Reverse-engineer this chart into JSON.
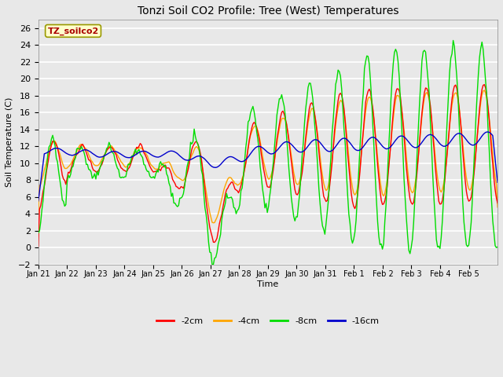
{
  "title": "Tonzi Soil CO2 Profile: Tree (West) Temperatures",
  "xlabel": "Time",
  "ylabel": "Soil Temperature (C)",
  "ylim": [
    -2,
    27
  ],
  "yticks": [
    -2,
    0,
    2,
    4,
    6,
    8,
    10,
    12,
    14,
    16,
    18,
    20,
    22,
    24,
    26
  ],
  "xtick_labels": [
    "Jan 21",
    "Jan 22",
    "Jan 23",
    "Jan 24",
    "Jan 25",
    "Jan 26",
    "Jan 27",
    "Jan 28",
    "Jan 29",
    "Jan 30",
    "Jan 31",
    "Feb 1",
    "Feb 2",
    "Feb 3",
    "Feb 4",
    "Feb 5"
  ],
  "legend_label": "TZ_soilco2",
  "series_labels": [
    "-2cm",
    "-4cm",
    "-8cm",
    "-16cm"
  ],
  "series_colors": [
    "#ff0000",
    "#ffa500",
    "#00dd00",
    "#0000cc"
  ],
  "line_width": 1.0,
  "bg_color": "#e8e8e8",
  "grid_color": "#ffffff"
}
